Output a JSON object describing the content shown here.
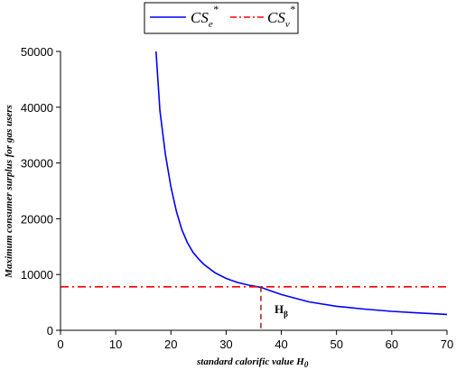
{
  "chart_data": {
    "type": "line",
    "xlabel": "standard calorific value H",
    "xlabel_sub": "0",
    "ylabel": "Maximum consumer surplus for gas users",
    "xlim": [
      0,
      70
    ],
    "ylim": [
      0,
      50000
    ],
    "xticks": [
      0,
      10,
      20,
      30,
      40,
      50,
      60,
      70
    ],
    "yticks": [
      0,
      10000,
      20000,
      30000,
      40000,
      50000
    ],
    "grid": false,
    "legend_position": "top",
    "colors": {
      "cs_e": "#0000ff",
      "cs_v": "#ff0000",
      "h_beta": "#8b0000"
    },
    "series": [
      {
        "key": "cs_e",
        "legend_base": "CS",
        "legend_sub": "e",
        "legend_sup": "*",
        "style": "solid",
        "x": [
          17.3,
          18,
          19,
          20,
          21,
          22,
          23,
          24,
          25,
          26,
          28,
          30,
          32,
          34,
          36.3,
          38,
          40,
          45,
          50,
          55,
          60,
          65,
          70
        ],
        "y": [
          50000,
          39400,
          31500,
          25700,
          21300,
          18000,
          15700,
          14000,
          12800,
          11800,
          10300,
          9300,
          8600,
          8100,
          7700,
          7100,
          6400,
          5100,
          4300,
          3800,
          3400,
          3100,
          2850
        ]
      },
      {
        "key": "cs_v",
        "legend_base": "CS",
        "legend_sub": "v",
        "legend_sup": "*",
        "style": "dashdot",
        "x": [
          0,
          70
        ],
        "y": [
          7800,
          7800
        ]
      }
    ],
    "annotations": [
      {
        "key": "h_beta",
        "text": "H",
        "sub": "β",
        "x": 36.3,
        "y_top": 7800,
        "y_bottom": 0,
        "style": "dashed"
      }
    ]
  }
}
